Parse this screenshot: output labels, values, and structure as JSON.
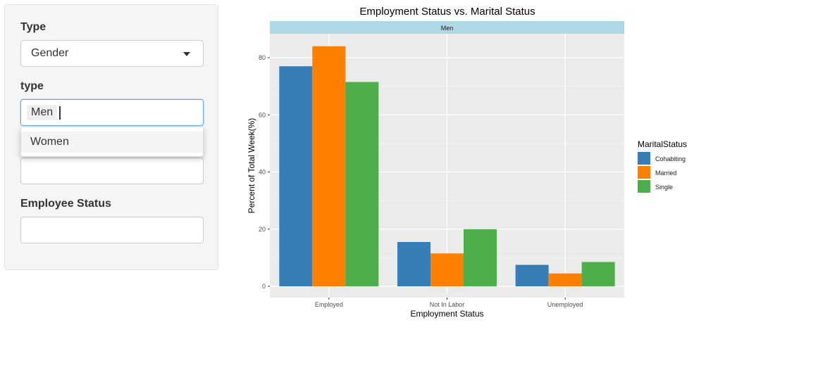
{
  "sidebar": {
    "type_label": "Type",
    "type_select_value": "Gender",
    "subtype_label": "type",
    "subtype_selected_chip": "Men",
    "dropdown_options": [
      "Women"
    ],
    "field3_value": "",
    "employee_status_label": "Employee Status",
    "employee_status_value": ""
  },
  "colors": {
    "Cohabiting": "#377eb8",
    "Married": "#ff7f00",
    "Single": "#4daf4a",
    "panel_bg": "#ebebeb",
    "strip_bg": "#add8e6"
  },
  "chart_data": {
    "type": "bar",
    "title": "Employment Status vs. Marital Status",
    "facet_label": "Men",
    "xlabel": "Employment Status",
    "ylabel": "Percent of Total Week(%)",
    "categories": [
      "Employed",
      "Not In Labor",
      "Unemployed"
    ],
    "series": [
      {
        "name": "Cohabiting",
        "values": [
          77,
          15.5,
          7.5
        ]
      },
      {
        "name": "Married",
        "values": [
          84,
          11.5,
          4.5
        ]
      },
      {
        "name": "Single",
        "values": [
          71.5,
          20,
          8.5
        ]
      }
    ],
    "ylim": [
      0,
      88
    ],
    "yticks": [
      0,
      20,
      40,
      60,
      80
    ],
    "legend_title": "MaritalStatus",
    "legend_position": "right",
    "grid": true
  }
}
